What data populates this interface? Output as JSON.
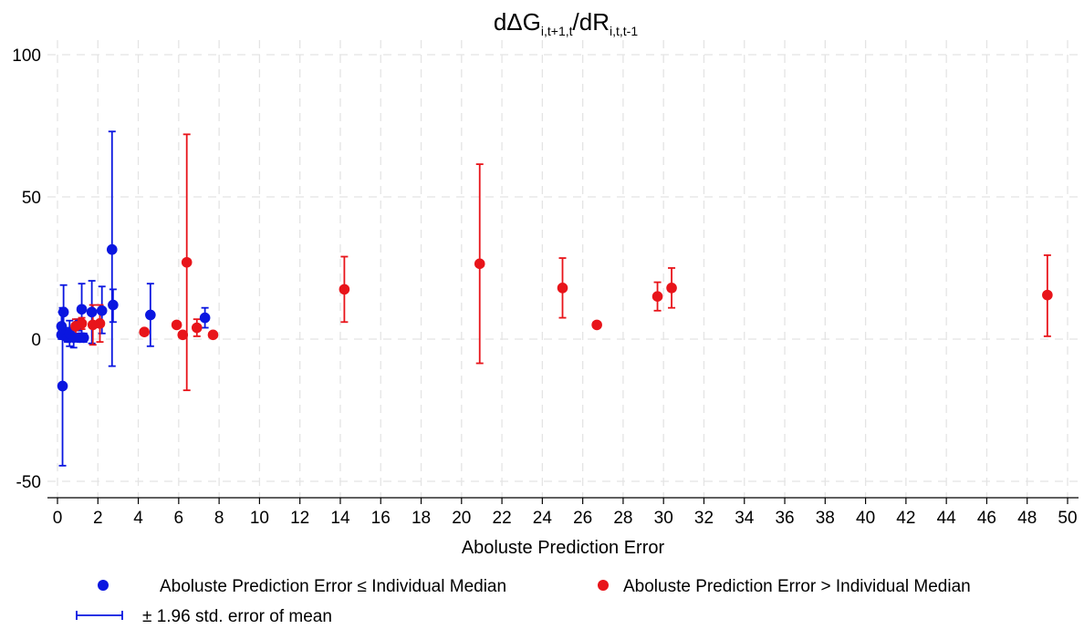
{
  "chart_data": {
    "type": "scatter",
    "title": {
      "main": "dΔG",
      "sub1": "i,t+1,t",
      "slash": "/dR",
      "sub2": "i,t,t-1"
    },
    "xlabel": "Aboluste Prediction Error",
    "ylabel": "",
    "xlim": [
      0,
      50
    ],
    "ylim": [
      -50,
      100
    ],
    "xticks": [
      0,
      2,
      4,
      6,
      8,
      10,
      12,
      14,
      16,
      18,
      20,
      22,
      24,
      26,
      28,
      30,
      32,
      34,
      36,
      38,
      40,
      42,
      44,
      46,
      48,
      50
    ],
    "yticks": [
      -50,
      0,
      50,
      100
    ],
    "grid": true,
    "legend_position": "bottom",
    "colors": {
      "low": "#0a16e0",
      "high": "#e8141a",
      "grid": "#e4e4e4"
    },
    "series": [
      {
        "name": "Aboluste Prediction Error ≤ Individual Median",
        "key": "low",
        "points": [
          {
            "x": 0.2,
            "y": 4.5,
            "lo": 0.5,
            "hi": 9.5
          },
          {
            "x": 0.2,
            "y": 1.5,
            "lo": 0.0,
            "hi": 3.0
          },
          {
            "x": 0.25,
            "y": -16.5,
            "lo": -44.5,
            "hi": 11.0
          },
          {
            "x": 0.3,
            "y": 9.5,
            "lo": 0.5,
            "hi": 19.0
          },
          {
            "x": 0.4,
            "y": 2.0,
            "lo": 0.0,
            "hi": 4.0
          },
          {
            "x": 0.5,
            "y": 0.5,
            "lo": -1.0,
            "hi": 2.0
          },
          {
            "x": 0.6,
            "y": 2.0,
            "lo": -2.5,
            "hi": 6.5
          },
          {
            "x": 0.8,
            "y": 0.5,
            "lo": -3.0,
            "hi": 4.0
          },
          {
            "x": 1.0,
            "y": 5.0,
            "lo": 3.0,
            "hi": 7.0
          },
          {
            "x": 1.1,
            "y": 0.5,
            "lo": -1.0,
            "hi": 2.0
          },
          {
            "x": 1.2,
            "y": 10.5,
            "lo": 1.5,
            "hi": 19.5
          },
          {
            "x": 1.3,
            "y": 0.5,
            "lo": -1.0,
            "hi": 2.0
          },
          {
            "x": 1.7,
            "y": 9.5,
            "lo": -1.5,
            "hi": 20.5
          },
          {
            "x": 2.2,
            "y": 10.0,
            "lo": 2.0,
            "hi": 18.5
          },
          {
            "x": 2.7,
            "y": 31.5,
            "lo": -9.5,
            "hi": 73.0
          },
          {
            "x": 2.75,
            "y": 12.0,
            "lo": 6.0,
            "hi": 17.5
          },
          {
            "x": 4.6,
            "y": 8.5,
            "lo": -2.5,
            "hi": 19.5
          },
          {
            "x": 7.3,
            "y": 7.5,
            "lo": 4.0,
            "hi": 11.0
          }
        ]
      },
      {
        "name": "Aboluste Prediction Error > Individual Median",
        "key": "high",
        "points": [
          {
            "x": 0.9,
            "y": 4.5,
            "lo": 2.0,
            "hi": 7.0
          },
          {
            "x": 1.2,
            "y": 5.5,
            "lo": 3.5,
            "hi": 7.5
          },
          {
            "x": 1.75,
            "y": 5.0,
            "lo": -2.0,
            "hi": 12.0
          },
          {
            "x": 2.1,
            "y": 5.5,
            "lo": -1.0,
            "hi": 12.0
          },
          {
            "x": 4.3,
            "y": 2.5,
            "lo": 1.5,
            "hi": 3.5
          },
          {
            "x": 5.9,
            "y": 5.0,
            "lo": 4.0,
            "hi": 6.0
          },
          {
            "x": 6.2,
            "y": 1.5,
            "lo": 0.5,
            "hi": 2.5
          },
          {
            "x": 6.4,
            "y": 27.0,
            "lo": -18.0,
            "hi": 72.0
          },
          {
            "x": 6.9,
            "y": 4.0,
            "lo": 1.0,
            "hi": 7.0
          },
          {
            "x": 7.7,
            "y": 1.5,
            "lo": 0.5,
            "hi": 2.5
          },
          {
            "x": 14.2,
            "y": 17.5,
            "lo": 6.0,
            "hi": 29.0
          },
          {
            "x": 20.9,
            "y": 26.5,
            "lo": -8.5,
            "hi": 61.5
          },
          {
            "x": 25.0,
            "y": 18.0,
            "lo": 7.5,
            "hi": 28.5
          },
          {
            "x": 26.7,
            "y": 5.0,
            "lo": 4.0,
            "hi": 6.0
          },
          {
            "x": 29.7,
            "y": 15.0,
            "lo": 10.0,
            "hi": 20.0
          },
          {
            "x": 30.4,
            "y": 18.0,
            "lo": 11.0,
            "hi": 25.0
          },
          {
            "x": 49.0,
            "y": 15.5,
            "lo": 1.0,
            "hi": 29.5
          }
        ]
      }
    ],
    "errorbar_legend": "± 1.96 std. error of mean"
  }
}
